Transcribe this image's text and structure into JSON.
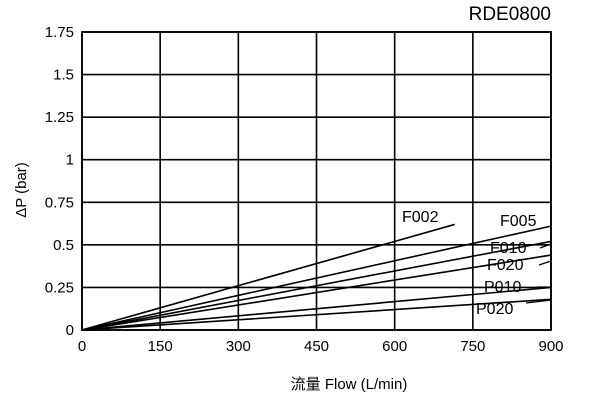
{
  "chart_data": {
    "type": "line",
    "title": "RDE0800",
    "xlabel": "流量 Flow (L/min)",
    "ylabel": "ΔP (bar)",
    "xlim": [
      0,
      900
    ],
    "ylim": [
      0,
      1.75
    ],
    "x_ticks": [
      "0",
      "150",
      "300",
      "450",
      "600",
      "750",
      "900"
    ],
    "y_ticks": [
      "0",
      "0.25",
      "0.5",
      "0.75",
      "1",
      "1.25",
      "1.5",
      "1.75"
    ],
    "grid": true,
    "series": [
      {
        "name": "F002",
        "x": [
          0,
          715
        ],
        "y": [
          0,
          0.62
        ]
      },
      {
        "name": "F005",
        "x": [
          0,
          900
        ],
        "y": [
          0,
          0.61
        ]
      },
      {
        "name": "F010",
        "x": [
          0,
          900
        ],
        "y": [
          0,
          0.52
        ]
      },
      {
        "name": "F020",
        "x": [
          0,
          900
        ],
        "y": [
          0,
          0.44
        ]
      },
      {
        "name": "P010",
        "x": [
          0,
          900
        ],
        "y": [
          0,
          0.25
        ]
      },
      {
        "name": "P020",
        "x": [
          0,
          900
        ],
        "y": [
          0,
          0.18
        ]
      }
    ]
  }
}
